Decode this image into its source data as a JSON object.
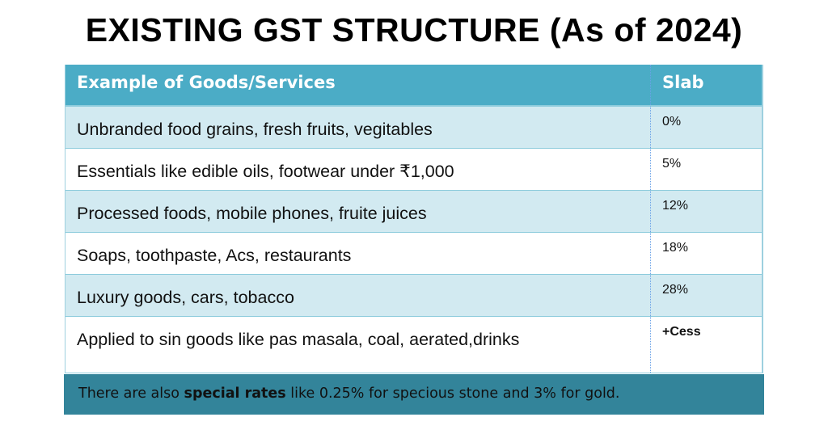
{
  "title": "EXISTING GST STRUCTURE (As of 2024)",
  "table": {
    "headers": [
      "Example of Goods/Services",
      "Slab"
    ],
    "rows": [
      [
        "Unbranded food grains, fresh fruits, vegitables",
        "0%"
      ],
      [
        "Essentials like edible oils, footwear under ₹1,000",
        "5%"
      ],
      [
        "Processed foods, mobile phones, fruite juices",
        "12%"
      ],
      [
        "Soaps, toothpaste, Acs, restaurants",
        "18%"
      ],
      [
        "Luxury goods, cars, tobacco",
        "28%"
      ],
      [
        "Applied to sin goods like pas masala, coal, aerated,drinks",
        "+Cess"
      ]
    ]
  },
  "footer": {
    "pre": "There are also ",
    "bold": "special rates",
    "post": " like 0.25% for specious stone and 3% for gold."
  },
  "colors": {
    "header": "#4bacc6",
    "alt_row": "#d2eaf1",
    "footer": "#33849a"
  }
}
